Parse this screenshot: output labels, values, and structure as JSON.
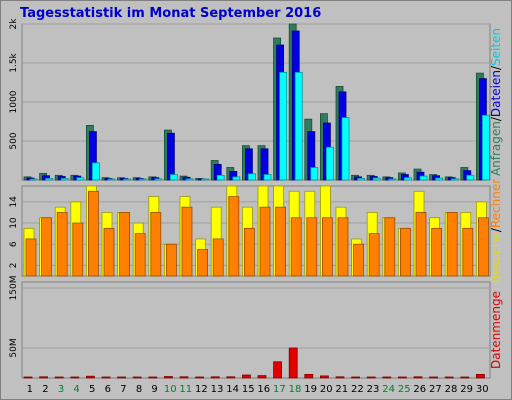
{
  "title": "Tagesstatistik im Monat September 2016",
  "colors": {
    "panel_bg": "#c0c0c0",
    "grid": "#a0a0a0",
    "anfragen": "#2e7d5e",
    "dateien": "#0000e0",
    "seiten": "#00ffff",
    "besuche": "#ffff00",
    "rechner": "#ff8000",
    "datenmenge": "#e00000",
    "day_normal": "#000000",
    "day_weekend": "#00802c"
  },
  "chart_data": [
    {
      "type": "bar",
      "label_parts": [
        {
          "text": "Anfragen",
          "color": "#2e7d5e"
        },
        {
          "text": "/",
          "color": "#000000"
        },
        {
          "text": "Dateien",
          "color": "#0000e0"
        },
        {
          "text": "/",
          "color": "#000000"
        },
        {
          "text": "Seiten",
          "color": "#00c8e0"
        }
      ],
      "ylim": [
        0,
        2000
      ],
      "ticks": [
        {
          "value": 500,
          "label": "500"
        },
        {
          "value": 1000,
          "label": "1000"
        },
        {
          "value": 1500,
          "label": "1.5k"
        },
        {
          "value": 2000,
          "label": "2k"
        }
      ],
      "series": [
        {
          "name": "Anfragen",
          "values": [
            40,
            85,
            60,
            60,
            700,
            30,
            30,
            30,
            40,
            640,
            50,
            20,
            250,
            160,
            440,
            440,
            1820,
            2000,
            780,
            850,
            1200,
            60,
            60,
            40,
            90,
            140,
            70,
            40,
            160,
            1370
          ]
        },
        {
          "name": "Dateien",
          "values": [
            25,
            55,
            45,
            50,
            620,
            20,
            20,
            20,
            30,
            600,
            35,
            10,
            200,
            110,
            400,
            400,
            1730,
            1910,
            620,
            730,
            1130,
            40,
            45,
            30,
            70,
            100,
            55,
            30,
            120,
            1300
          ]
        },
        {
          "name": "Seiten",
          "values": [
            10,
            20,
            20,
            30,
            220,
            10,
            10,
            10,
            15,
            70,
            15,
            5,
            60,
            40,
            80,
            70,
            1380,
            1380,
            160,
            420,
            800,
            20,
            25,
            10,
            30,
            50,
            25,
            15,
            60,
            830
          ]
        }
      ]
    },
    {
      "type": "bar",
      "label_parts": [
        {
          "text": "Besuche",
          "color": "#e0e000"
        },
        {
          "text": "/",
          "color": "#000000"
        },
        {
          "text": "Rechner",
          "color": "#ff8000"
        }
      ],
      "ylim": [
        0,
        17
      ],
      "ticks": [
        {
          "value": 2,
          "label": "2"
        },
        {
          "value": 6,
          "label": "6"
        },
        {
          "value": 10,
          "label": "10"
        },
        {
          "value": 14,
          "label": "14"
        }
      ],
      "series": [
        {
          "name": "Besuche",
          "values": [
            9,
            11,
            13,
            14,
            17,
            12,
            12,
            10,
            15,
            6,
            15,
            7,
            13,
            17,
            13,
            17,
            17,
            16,
            16,
            17,
            13,
            7,
            12,
            11,
            9,
            16,
            11,
            12,
            12,
            14
          ]
        },
        {
          "name": "Rechner",
          "values": [
            7,
            11,
            12,
            10,
            16,
            9,
            12,
            8,
            12,
            6,
            13,
            5,
            7,
            15,
            9,
            13,
            13,
            11,
            11,
            11,
            11,
            6,
            8,
            11,
            9,
            12,
            9,
            12,
            9,
            11
          ]
        }
      ]
    },
    {
      "type": "bar",
      "label_parts": [
        {
          "text": "Datenmenge",
          "color": "#e00000"
        }
      ],
      "ylim": [
        0,
        160
      ],
      "ticks": [
        {
          "value": 50,
          "label": "50M"
        },
        {
          "value": 150,
          "label": "150M"
        }
      ],
      "series": [
        {
          "name": "Datenmenge",
          "values": [
            1.5,
            2,
            1.5,
            1.5,
            3,
            1,
            1,
            1,
            1.5,
            2.5,
            2,
            1,
            2,
            2,
            5,
            4,
            27,
            50,
            6,
            3.5,
            2,
            1.5,
            1.5,
            1.5,
            1.5,
            2,
            1.5,
            1.5,
            1.5,
            6
          ]
        }
      ]
    }
  ],
  "days": [
    "1",
    "2",
    "3",
    "4",
    "5",
    "6",
    "7",
    "8",
    "9",
    "10",
    "11",
    "12",
    "13",
    "14",
    "15",
    "16",
    "17",
    "18",
    "19",
    "20",
    "21",
    "22",
    "23",
    "24",
    "25",
    "26",
    "27",
    "28",
    "29",
    "30"
  ],
  "weekend_days": [
    3,
    4,
    10,
    11,
    17,
    18,
    24,
    25
  ]
}
